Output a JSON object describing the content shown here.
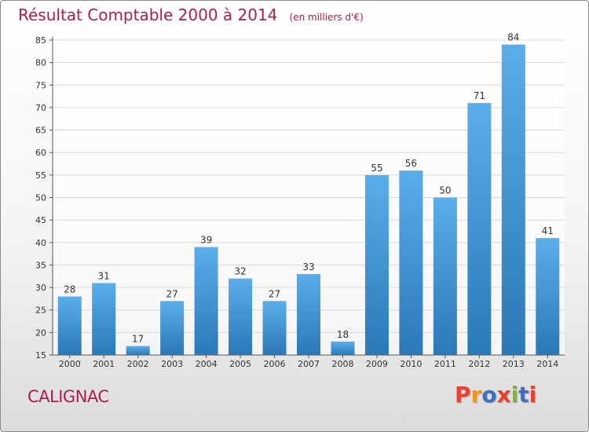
{
  "header": {
    "title": "Résultat Comptable 2000 à 2014",
    "unit": "(en milliers d'€)"
  },
  "footer": {
    "place": "CALIGNAC",
    "logo_text": "Proxiti"
  },
  "colors": {
    "title": "#b01c4a",
    "bar_top": "#5aaeea",
    "bar_bottom": "#2b78b7",
    "grid": "#d8d8d8",
    "logo_letters": [
      "#e8412c",
      "#f29a18",
      "#3c6fc4",
      "#e8412c",
      "#7ab929",
      "#3c6fc4",
      "#e8412c"
    ]
  },
  "chart_data": {
    "type": "bar",
    "title": "Résultat Comptable 2000 à 2014",
    "xlabel": "",
    "ylabel": "",
    "categories": [
      "2000",
      "2001",
      "2002",
      "2003",
      "2004",
      "2005",
      "2006",
      "2007",
      "2008",
      "2009",
      "2010",
      "2011",
      "2012",
      "2013",
      "2014"
    ],
    "values": [
      28,
      31,
      17,
      27,
      39,
      32,
      27,
      33,
      18,
      55,
      56,
      50,
      71,
      84,
      41
    ],
    "ylim": [
      15,
      85
    ],
    "yticks": [
      15,
      20,
      25,
      30,
      35,
      40,
      45,
      50,
      55,
      60,
      65,
      70,
      75,
      80,
      85
    ],
    "grid": true,
    "data_labels": true
  }
}
